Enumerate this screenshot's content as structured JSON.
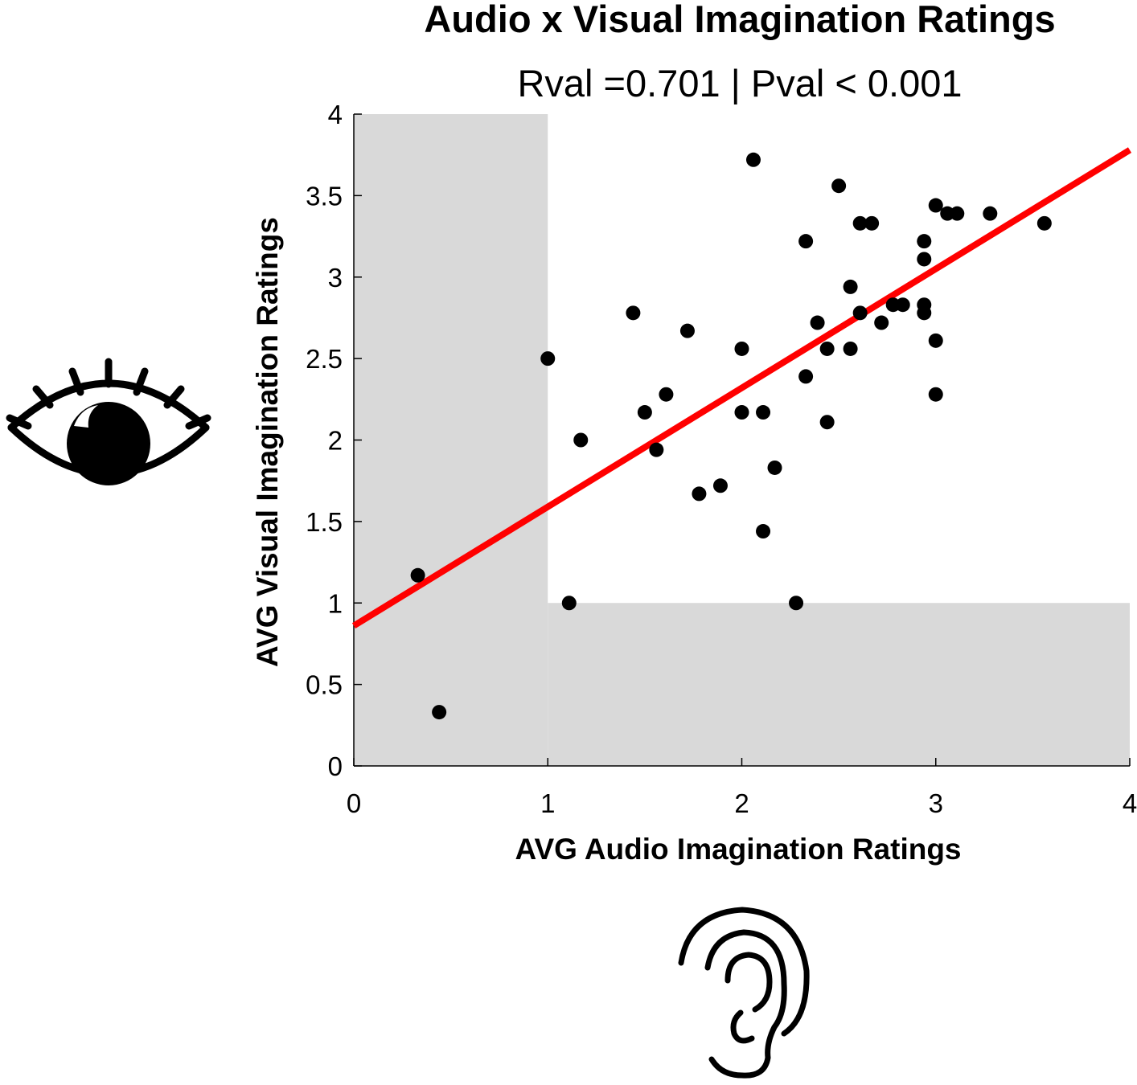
{
  "chart_data": {
    "type": "scatter",
    "title": "Audio x Visual Imagination Ratings",
    "subtitle": "Rval =0.701 | Pval < 0.001",
    "xlabel": "AVG Audio Imagination Ratings",
    "ylabel": "AVG Visual Imagination Ratings",
    "xlim": [
      0,
      4
    ],
    "ylim": [
      0,
      4
    ],
    "xticks": [
      0,
      1,
      2,
      3,
      4
    ],
    "xtick_labels": [
      "0",
      "1",
      "2",
      "3",
      "4"
    ],
    "yticks": [
      0,
      0.5,
      1,
      1.5,
      2,
      2.5,
      3,
      3.5,
      4
    ],
    "ytick_labels": [
      "0",
      "0.5",
      "1",
      "1.5",
      "2",
      "2.5",
      "3",
      "3.5",
      "4"
    ],
    "grid": false,
    "points": [
      [
        0.33,
        1.17
      ],
      [
        0.44,
        0.33
      ],
      [
        1.0,
        2.5
      ],
      [
        1.11,
        1.0
      ],
      [
        1.17,
        2.0
      ],
      [
        1.44,
        2.78
      ],
      [
        1.5,
        2.17
      ],
      [
        1.56,
        1.94
      ],
      [
        1.61,
        2.28
      ],
      [
        1.72,
        2.67
      ],
      [
        1.78,
        1.67
      ],
      [
        1.89,
        1.72
      ],
      [
        2.0,
        2.56
      ],
      [
        2.0,
        2.17
      ],
      [
        2.06,
        3.72
      ],
      [
        2.11,
        2.17
      ],
      [
        2.11,
        1.44
      ],
      [
        2.17,
        1.83
      ],
      [
        2.28,
        1.0
      ],
      [
        2.33,
        3.22
      ],
      [
        2.33,
        2.39
      ],
      [
        2.39,
        2.72
      ],
      [
        2.44,
        2.56
      ],
      [
        2.44,
        2.11
      ],
      [
        2.5,
        3.56
      ],
      [
        2.56,
        2.94
      ],
      [
        2.56,
        2.56
      ],
      [
        2.61,
        3.33
      ],
      [
        2.61,
        2.78
      ],
      [
        2.67,
        3.33
      ],
      [
        2.72,
        2.72
      ],
      [
        2.78,
        2.83
      ],
      [
        2.83,
        2.83
      ],
      [
        2.94,
        3.22
      ],
      [
        2.94,
        3.11
      ],
      [
        2.94,
        2.83
      ],
      [
        2.94,
        2.78
      ],
      [
        3.0,
        3.44
      ],
      [
        3.0,
        2.61
      ],
      [
        3.0,
        2.28
      ],
      [
        3.06,
        3.39
      ],
      [
        3.11,
        3.39
      ],
      [
        3.28,
        3.39
      ],
      [
        3.56,
        3.33
      ]
    ],
    "fit_line": {
      "x": [
        0,
        4
      ],
      "y": [
        0.86,
        3.78
      ],
      "color": "#ff0000"
    },
    "shaded_regions": [
      {
        "x": [
          0,
          1
        ],
        "y": [
          0,
          4
        ],
        "color": "#d9d9d9"
      },
      {
        "x": [
          1,
          4
        ],
        "y": [
          0,
          1
        ],
        "color": "#d9d9d9"
      }
    ],
    "marker_color": "#000000"
  },
  "icons": {
    "eye": "eye-icon",
    "ear": "ear-icon"
  }
}
